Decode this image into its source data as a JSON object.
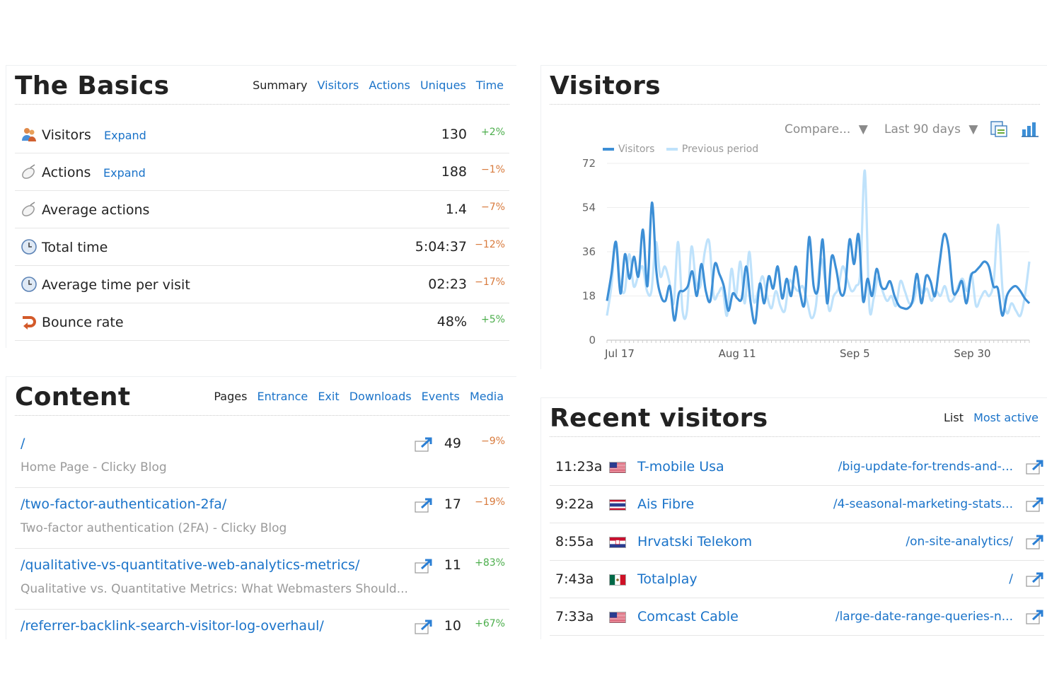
{
  "basics": {
    "title": "The Basics",
    "tabs": [
      "Summary",
      "Visitors",
      "Actions",
      "Uniques",
      "Time"
    ],
    "rows": [
      {
        "icon": "visitors-icon",
        "label": "Visitors",
        "expand": "Expand",
        "value": "130",
        "change": "+2%",
        "dir": "up"
      },
      {
        "icon": "cursor-icon",
        "label": "Actions",
        "expand": "Expand",
        "value": "188",
        "change": "−1%",
        "dir": "down"
      },
      {
        "icon": "cursor-icon",
        "label": "Average actions",
        "expand": "",
        "value": "1.4",
        "change": "−7%",
        "dir": "down"
      },
      {
        "icon": "clock-icon",
        "label": "Total time",
        "expand": "",
        "value": "5:04:37",
        "change": "−12%",
        "dir": "down"
      },
      {
        "icon": "clock-icon",
        "label": "Average time per visit",
        "expand": "",
        "value": "02:23",
        "change": "−17%",
        "dir": "down"
      },
      {
        "icon": "bounce-icon",
        "label": "Bounce rate",
        "expand": "",
        "value": "48%",
        "change": "+5%",
        "dir": "up"
      }
    ]
  },
  "content": {
    "title": "Content",
    "tabs": [
      "Pages",
      "Entrance",
      "Exit",
      "Downloads",
      "Events",
      "Media"
    ],
    "rows": [
      {
        "path": "/",
        "title": "Home Page - Clicky Blog",
        "value": "49",
        "change": "−9%",
        "dir": "down"
      },
      {
        "path": "/two-factor-authentication-2fa/",
        "title": "Two-factor authentication (2FA) - Clicky Blog",
        "value": "17",
        "change": "−19%",
        "dir": "down"
      },
      {
        "path": "/qualitative-vs-quantitative-web-analytics-metrics/",
        "title": "Qualitative vs. Quantitative Metrics: What Webmasters Should...",
        "value": "11",
        "change": "+83%",
        "dir": "up"
      },
      {
        "path": "/referrer-backlink-search-visitor-log-overhaul/",
        "title": "",
        "value": "10",
        "change": "+67%",
        "dir": "up"
      }
    ]
  },
  "visitors_chart": {
    "title": "Visitors",
    "compare_label": "Compare...",
    "range_label": "Last 90 days",
    "export_icon": "export-icon",
    "chart_type_icon": "bar-chart-icon",
    "colors": {
      "current": "#3d8fd6",
      "previous": "#bfe2fb"
    }
  },
  "chart_data": {
    "type": "line",
    "title": "",
    "xlabel": "",
    "ylabel": "",
    "ylim": [
      0,
      72
    ],
    "y_ticks": [
      0,
      18,
      36,
      54,
      72
    ],
    "x_tick_labels": [
      "Jul 17",
      "Aug 11",
      "Sep 5",
      "Sep 30"
    ],
    "legend_position": "top-left",
    "series": [
      {
        "name": "Visitors",
        "values": [
          16,
          27,
          40,
          19,
          35,
          25,
          34,
          26,
          45,
          22,
          56,
          28,
          18,
          16,
          22,
          8,
          19,
          20,
          22,
          28,
          18,
          31,
          20,
          16,
          31,
          27,
          22,
          12,
          19,
          17,
          17,
          30,
          15,
          7,
          23,
          15,
          26,
          21,
          30,
          17,
          25,
          18,
          30,
          19,
          15,
          42,
          22,
          21,
          41,
          15,
          34,
          29,
          19,
          21,
          41,
          31,
          43,
          16,
          25,
          18,
          29,
          22,
          21,
          24,
          18,
          14,
          13,
          13,
          16,
          27,
          15,
          26,
          24,
          18,
          31,
          43,
          38,
          20,
          20,
          24,
          15,
          26,
          28,
          30,
          32,
          30,
          22,
          21,
          10,
          18,
          21,
          22,
          20,
          17,
          15
        ]
      },
      {
        "name": "Previous period",
        "values": [
          10,
          22,
          40,
          23,
          20,
          35,
          22,
          26,
          30,
          20,
          20,
          40,
          26,
          30,
          24,
          15,
          40,
          12,
          12,
          38,
          24,
          22,
          36,
          40,
          18,
          19,
          21,
          10,
          29,
          18,
          32,
          15,
          36,
          16,
          20,
          26,
          18,
          13,
          20,
          14,
          12,
          24,
          22,
          20,
          22,
          16,
          9,
          14,
          33,
          25,
          12,
          18,
          21,
          30,
          25,
          20,
          22,
          28,
          69,
          14,
          17,
          26,
          20,
          16,
          18,
          14,
          24,
          20,
          15,
          16,
          23,
          19,
          21,
          16,
          20,
          18,
          22,
          16,
          17,
          22,
          25,
          20,
          27,
          14,
          17,
          20,
          18,
          24,
          47,
          20,
          11,
          15,
          12,
          10,
          18,
          32
        ]
      }
    ]
  },
  "recent": {
    "title": "Recent visitors",
    "tabs": [
      "List",
      "Most active"
    ],
    "rows": [
      {
        "time": "11:23a",
        "flag": "us",
        "isp": "T-mobile Usa",
        "page": "/big-update-for-trends-and-..."
      },
      {
        "time": "9:22a",
        "flag": "th",
        "isp": "Ais Fibre",
        "page": "/4-seasonal-marketing-stats..."
      },
      {
        "time": "8:55a",
        "flag": "hr",
        "isp": "Hrvatski Telekom",
        "page": "/on-site-analytics/"
      },
      {
        "time": "7:43a",
        "flag": "mx",
        "isp": "Totalplay",
        "page": "/"
      },
      {
        "time": "7:33a",
        "flag": "us",
        "isp": "Comcast Cable",
        "page": "/large-date-range-queries-n..."
      }
    ]
  }
}
